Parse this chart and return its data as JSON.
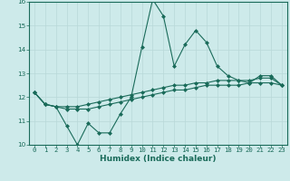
{
  "xlabel": "Humidex (Indice chaleur)",
  "x": [
    0,
    1,
    2,
    3,
    4,
    5,
    6,
    7,
    8,
    9,
    10,
    11,
    12,
    13,
    14,
    15,
    16,
    17,
    18,
    19,
    20,
    21,
    22,
    23
  ],
  "line1": [
    12.2,
    11.7,
    11.6,
    10.8,
    10.0,
    10.9,
    10.5,
    10.5,
    11.3,
    12.0,
    14.1,
    16.1,
    15.4,
    13.3,
    14.2,
    14.8,
    14.3,
    13.3,
    12.9,
    12.7,
    12.6,
    12.9,
    12.9,
    12.5
  ],
  "line2": [
    12.2,
    11.7,
    11.6,
    11.6,
    11.6,
    11.7,
    11.8,
    11.9,
    12.0,
    12.1,
    12.2,
    12.3,
    12.4,
    12.5,
    12.5,
    12.6,
    12.6,
    12.7,
    12.7,
    12.7,
    12.7,
    12.8,
    12.8,
    12.5
  ],
  "line3": [
    12.2,
    11.7,
    11.6,
    11.5,
    11.5,
    11.5,
    11.6,
    11.7,
    11.8,
    11.9,
    12.0,
    12.1,
    12.2,
    12.3,
    12.3,
    12.4,
    12.5,
    12.5,
    12.5,
    12.5,
    12.6,
    12.6,
    12.6,
    12.5
  ],
  "color": "#1a6b5a",
  "bg_color": "#cdeaea",
  "grid_color": "#b8d8d8",
  "ylim": [
    10,
    16
  ],
  "yticks": [
    10,
    11,
    12,
    13,
    14,
    15,
    16
  ],
  "xlim": [
    -0.5,
    23.5
  ],
  "marker": "D",
  "markersize": 2.0,
  "linewidth": 0.8,
  "tick_fontsize": 5.2,
  "xlabel_fontsize": 6.5
}
